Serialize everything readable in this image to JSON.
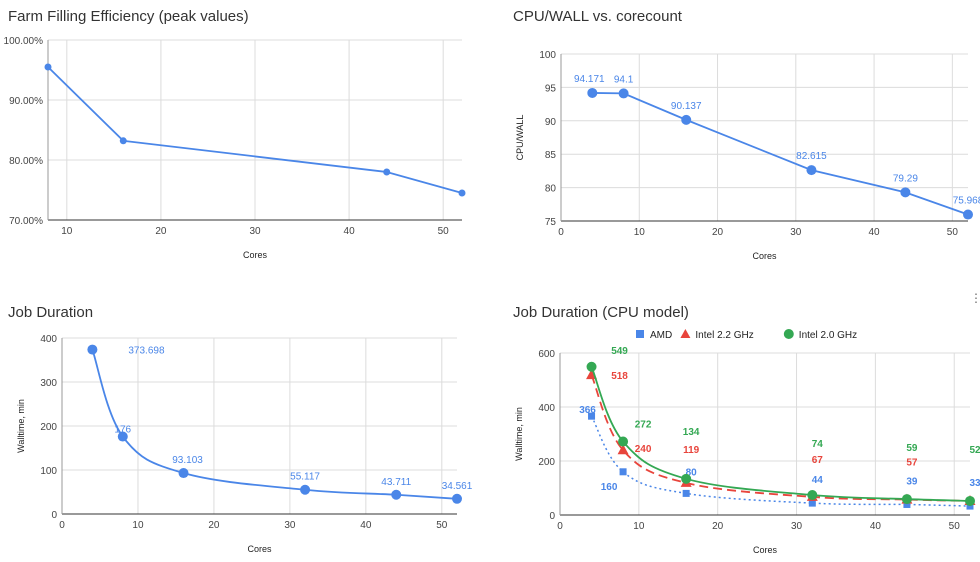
{
  "chart_data": [
    {
      "type": "line",
      "title": "Farm Filling Efficiency (peak values)",
      "xlabel": "Cores",
      "ylabel": "",
      "xlim": [
        8,
        52
      ],
      "ylim": [
        70,
        100
      ],
      "xticks": [
        10,
        20,
        30,
        40,
        50
      ],
      "yticks": [
        70,
        80,
        90,
        100
      ],
      "ytick_labels": [
        "70.00%",
        "80.00%",
        "90.00%",
        "100.00%"
      ],
      "grid": true,
      "legend": "none",
      "series": [
        {
          "x": [
            8,
            16,
            44,
            52
          ],
          "values": [
            95.5,
            83.2,
            78.0,
            74.5
          ],
          "labels": [],
          "color": "#4a86e8",
          "style": "solid"
        }
      ]
    },
    {
      "type": "line",
      "title": "CPU/WALL vs. corecount",
      "xlabel": "Cores",
      "ylabel": "CPU/WALL",
      "xlim": [
        0,
        52
      ],
      "ylim": [
        75,
        100
      ],
      "xticks": [
        0,
        10,
        20,
        30,
        40,
        50
      ],
      "yticks": [
        75,
        80,
        85,
        90,
        95,
        100
      ],
      "ytick_labels": [
        "75",
        "80",
        "85",
        "90",
        "95",
        "100"
      ],
      "grid": true,
      "legend": "none",
      "series": [
        {
          "x": [
            4,
            8,
            16,
            32,
            44,
            52
          ],
          "values": [
            94.171,
            94.1,
            90.137,
            82.615,
            79.29,
            75.968
          ],
          "labels": [
            "94.171",
            "94.1",
            "90.137",
            "82.615",
            "79.29",
            "75.968"
          ],
          "color": "#4a86e8",
          "style": "solid"
        }
      ]
    },
    {
      "type": "line",
      "title": "Job Duration",
      "xlabel": "Cores",
      "ylabel": "Walltime, min",
      "xlim": [
        0,
        52
      ],
      "ylim": [
        0,
        400
      ],
      "xticks": [
        0,
        10,
        20,
        30,
        40,
        50
      ],
      "yticks": [
        0,
        100,
        200,
        300,
        400
      ],
      "ytick_labels": [
        "0",
        "100",
        "200",
        "300",
        "400"
      ],
      "grid": true,
      "legend": "none",
      "series": [
        {
          "x": [
            4,
            8,
            16,
            32,
            44,
            52
          ],
          "values": [
            373.698,
            176,
            93.103,
            55.117,
            43.711,
            34.561
          ],
          "labels": [
            "373.698",
            "176",
            "93.103",
            "55.117",
            "43.711",
            "34.561"
          ],
          "color": "#4a86e8",
          "style": "smooth"
        }
      ]
    },
    {
      "type": "line",
      "title": "Job Duration (CPU model)",
      "xlabel": "Cores",
      "ylabel": "Walltime, min",
      "xlim": [
        0,
        52
      ],
      "ylim": [
        0,
        600
      ],
      "xticks": [
        0,
        10,
        20,
        30,
        40,
        50
      ],
      "yticks": [
        0,
        200,
        400,
        600
      ],
      "ytick_labels": [
        "0",
        "200",
        "400",
        "600"
      ],
      "grid": true,
      "legend": "top",
      "series": [
        {
          "name": "AMD",
          "x": [
            4,
            8,
            16,
            32,
            44,
            52
          ],
          "values": [
            366,
            160,
            80,
            44,
            39,
            33
          ],
          "labels": [
            "366",
            "160",
            "80",
            "44",
            "39",
            "33"
          ],
          "color": "#4a86e8",
          "style": "dotted",
          "marker": "square"
        },
        {
          "name": "Intel 2.2 GHz",
          "x": [
            4,
            8,
            16,
            32,
            44,
            52
          ],
          "values": [
            518,
            240,
            119,
            67,
            57,
            52
          ],
          "labels": [
            "518",
            "240",
            "119",
            "67",
            "57",
            ""
          ],
          "color": "#e8453c",
          "style": "dashed",
          "marker": "triangle"
        },
        {
          "name": "Intel 2.0 GHz",
          "x": [
            4,
            8,
            16,
            32,
            44,
            52
          ],
          "values": [
            549,
            272,
            134,
            74,
            59,
            52
          ],
          "labels": [
            "549",
            "272",
            "134",
            "74",
            "59",
            "52"
          ],
          "color": "#34a853",
          "style": "solid",
          "marker": "circle"
        }
      ]
    }
  ]
}
